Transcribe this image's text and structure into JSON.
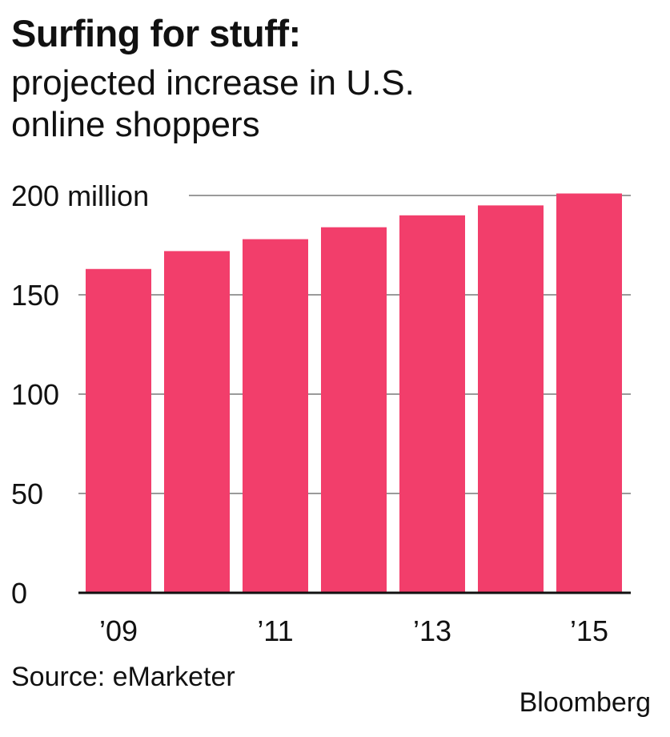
{
  "chart_data": {
    "type": "bar",
    "title": "Surfing for stuff:",
    "subtitle": "projected increase in U.S. online shoppers",
    "categories": [
      "2009",
      "2010",
      "2011",
      "2012",
      "2013",
      "2014",
      "2015"
    ],
    "x_tick_labels": [
      "’09",
      "",
      "’11",
      "",
      "’13",
      "",
      "’15"
    ],
    "values": [
      163,
      172,
      178,
      184,
      190,
      195,
      201
    ],
    "y_ticks": [
      {
        "value": 0,
        "label": "0"
      },
      {
        "value": 50,
        "label": "50"
      },
      {
        "value": 100,
        "label": "100"
      },
      {
        "value": 150,
        "label": "150"
      },
      {
        "value": 200,
        "label": "200 million"
      }
    ],
    "ylim": [
      0,
      200
    ],
    "grid": true,
    "bar_color": "#f23e6b",
    "grid_color": "#9a9a9a",
    "source": "Source: eMarketer",
    "credit": "Bloomberg"
  }
}
